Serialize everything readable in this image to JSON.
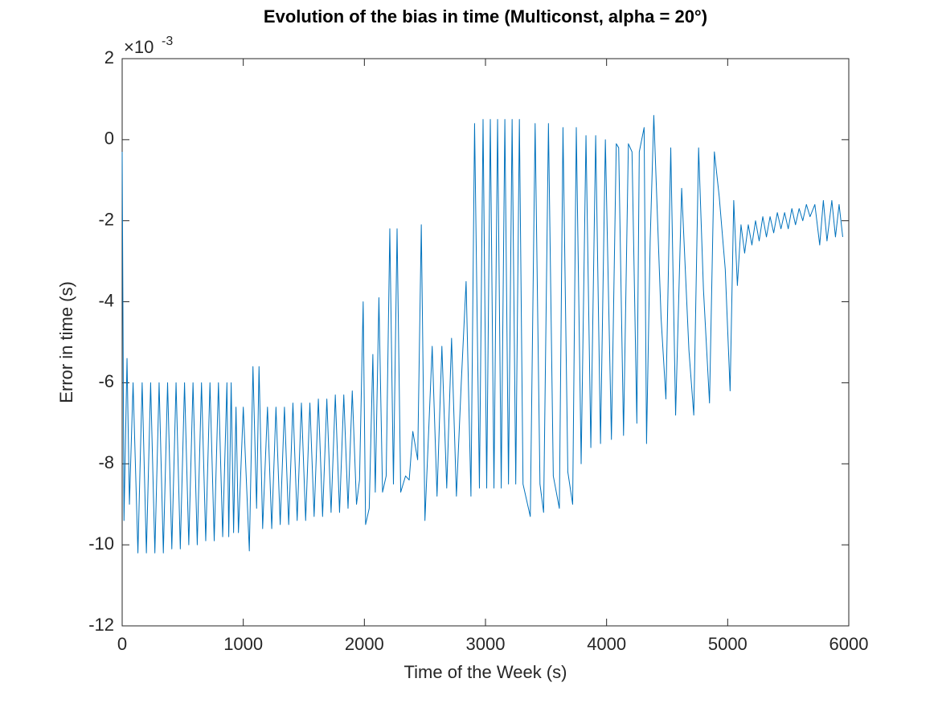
{
  "chart_data": {
    "type": "line",
    "title": "Evolution of the bias in time (Multiconst, alpha = 20°)",
    "x_label": "Time of the Week (s)",
    "y_label": "Error in time (s)",
    "y_exponent": {
      "base": "×10",
      "power": "-3"
    },
    "color": "#0072bd",
    "xlim": [
      0,
      6000
    ],
    "xticks": [
      0,
      1000,
      2000,
      3000,
      4000,
      5000,
      6000
    ],
    "ylim": [
      -12,
      2
    ],
    "yticks": [
      -12,
      -10,
      -8,
      -6,
      -4,
      -2,
      0,
      2
    ],
    "x": [
      0,
      15,
      40,
      60,
      90,
      130,
      165,
      200,
      235,
      270,
      305,
      340,
      375,
      410,
      445,
      480,
      515,
      550,
      585,
      620,
      655,
      690,
      725,
      760,
      795,
      830,
      865,
      880,
      900,
      920,
      940,
      960,
      1000,
      1050,
      1080,
      1110,
      1130,
      1160,
      1200,
      1235,
      1270,
      1305,
      1340,
      1375,
      1410,
      1445,
      1480,
      1515,
      1550,
      1585,
      1620,
      1655,
      1690,
      1725,
      1760,
      1795,
      1830,
      1865,
      1900,
      1935,
      1960,
      1990,
      2010,
      2040,
      2070,
      2090,
      2120,
      2150,
      2180,
      2210,
      2240,
      2270,
      2300,
      2340,
      2370,
      2400,
      2440,
      2470,
      2500,
      2560,
      2600,
      2640,
      2680,
      2720,
      2760,
      2800,
      2840,
      2880,
      2910,
      2950,
      2980,
      3010,
      3040,
      3070,
      3100,
      3130,
      3160,
      3190,
      3220,
      3250,
      3280,
      3310,
      3370,
      3410,
      3450,
      3480,
      3520,
      3560,
      3610,
      3640,
      3680,
      3720,
      3750,
      3790,
      3830,
      3870,
      3910,
      3950,
      3990,
      4040,
      4080,
      4100,
      4140,
      4180,
      4210,
      4250,
      4270,
      4310,
      4330,
      4360,
      4390,
      4450,
      4490,
      4530,
      4570,
      4620,
      4680,
      4720,
      4760,
      4800,
      4850,
      4890,
      4930,
      4980,
      5020,
      5050,
      5080,
      5110,
      5140,
      5170,
      5200,
      5230,
      5260,
      5290,
      5320,
      5350,
      5380,
      5410,
      5440,
      5470,
      5500,
      5530,
      5560,
      5590,
      5620,
      5650,
      5680,
      5720,
      5760,
      5790,
      5820,
      5860,
      5890,
      5920,
      5950
    ],
    "values": [
      -0.3,
      -9.4,
      -5.4,
      -9.0,
      -6.0,
      -10.2,
      -6.0,
      -10.2,
      -6.0,
      -10.2,
      -6.0,
      -10.2,
      -6.0,
      -10.1,
      -6.0,
      -10.1,
      -6.0,
      -10.0,
      -6.0,
      -10.0,
      -6.0,
      -9.9,
      -6.0,
      -9.9,
      -6.0,
      -9.8,
      -6.0,
      -9.8,
      -6.0,
      -9.7,
      -6.6,
      -9.7,
      -6.6,
      -10.15,
      -5.6,
      -9.1,
      -5.6,
      -9.6,
      -6.6,
      -9.6,
      -6.6,
      -9.5,
      -6.6,
      -9.5,
      -6.5,
      -9.4,
      -6.5,
      -9.4,
      -6.5,
      -9.3,
      -6.4,
      -9.3,
      -6.4,
      -9.2,
      -6.3,
      -9.2,
      -6.3,
      -9.1,
      -6.2,
      -9.0,
      -8.4,
      -4.0,
      -9.5,
      -9.1,
      -5.3,
      -8.7,
      -3.9,
      -8.7,
      -8.3,
      -2.2,
      -8.5,
      -2.2,
      -8.7,
      -8.3,
      -8.4,
      -7.2,
      -7.9,
      -2.1,
      -9.4,
      -5.1,
      -8.8,
      -5.1,
      -8.6,
      -4.9,
      -8.8,
      -6.0,
      -3.5,
      -8.8,
      0.4,
      -8.6,
      0.5,
      -8.6,
      0.5,
      -8.6,
      0.5,
      -8.6,
      0.5,
      -8.5,
      0.5,
      -8.5,
      0.5,
      -8.5,
      -9.3,
      0.4,
      -8.5,
      -9.2,
      0.4,
      -8.3,
      -9.1,
      0.3,
      -8.2,
      -9.0,
      0.3,
      -8.0,
      0.1,
      -7.6,
      0.1,
      -7.5,
      0.0,
      -7.4,
      -0.1,
      -0.2,
      -7.3,
      -0.1,
      -0.3,
      -7.0,
      -0.3,
      0.3,
      -7.5,
      -2.5,
      0.6,
      -4.4,
      -6.4,
      -0.2,
      -6.8,
      -1.2,
      -5.2,
      -6.8,
      -0.2,
      -3.7,
      -6.5,
      -0.3,
      -1.4,
      -3.2,
      -6.2,
      -1.5,
      -3.6,
      -2.1,
      -2.8,
      -2.1,
      -2.6,
      -2.0,
      -2.5,
      -1.9,
      -2.4,
      -1.9,
      -2.3,
      -1.8,
      -2.2,
      -1.8,
      -2.2,
      -1.7,
      -2.1,
      -1.7,
      -2.0,
      -1.6,
      -1.9,
      -1.6,
      -2.6,
      -1.5,
      -2.5,
      -1.5,
      -2.4,
      -1.6,
      -2.4
    ]
  }
}
